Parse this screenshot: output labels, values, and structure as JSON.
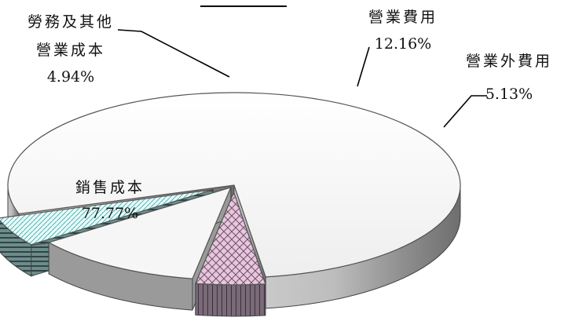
{
  "chart_data": {
    "type": "pie",
    "title": "",
    "categories": [
      "銷售成本",
      "勞務及其他營業成本",
      "營業費用",
      "營業外費用"
    ],
    "values": [
      77.77,
      4.94,
      12.16,
      5.13
    ],
    "value_labels": [
      "77.77%",
      "4.94%",
      "12.16%",
      "5.13%"
    ],
    "legend": "none"
  },
  "labels": {
    "sales_cost_name": "銷售成本",
    "sales_cost_pct": "77.77%",
    "labor_line1": "勞務及其他",
    "labor_line2": "營業成本",
    "labor_pct": "4.94%",
    "opex_name": "營業費用",
    "opex_pct": "12.16%",
    "nonop_name": "營業外費用",
    "nonop_pct": "5.13%"
  },
  "colors": {
    "sales_cost": "#f2f2f2",
    "labor": "#e8c6de",
    "opex": "#f5f5f5",
    "nonop": "#d4f2f2"
  }
}
